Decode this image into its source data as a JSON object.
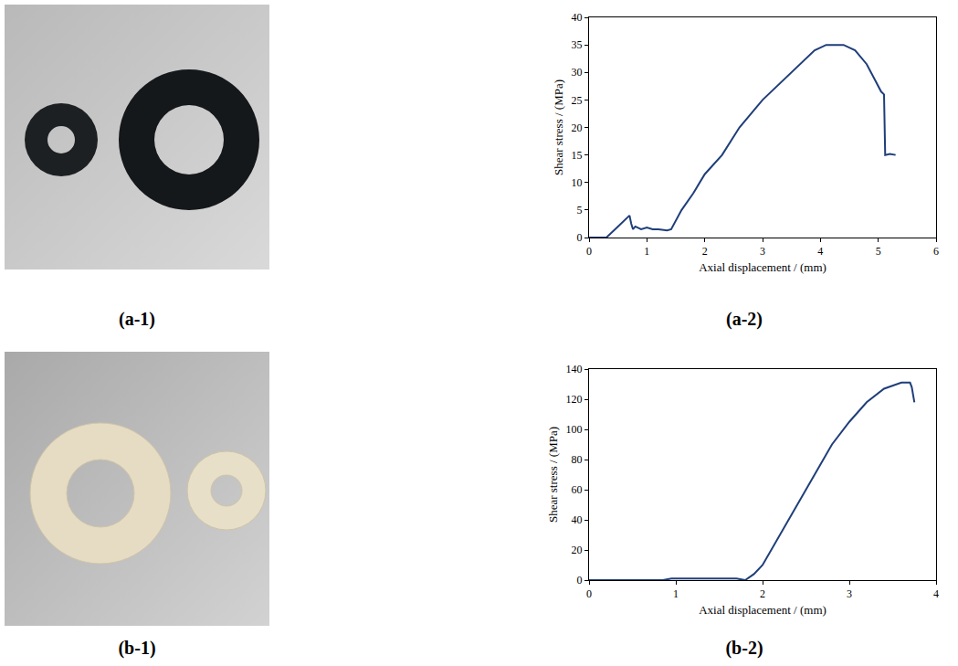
{
  "panels": [
    "(a-1)",
    "(a-2)",
    "(b-1)",
    "(b-2)"
  ],
  "chart_data": [
    {
      "type": "line",
      "color": "#1f3e7a",
      "grid": false,
      "x_label": "Axial displacement / (mm)",
      "y_label": "Shear stress / (MPa)",
      "x": [
        0,
        0.3,
        0.5,
        0.65,
        0.7,
        0.73,
        0.76,
        0.8,
        0.9,
        1.0,
        1.1,
        1.2,
        1.35,
        1.42,
        1.5,
        1.6,
        1.8,
        2.0,
        2.3,
        2.6,
        3.0,
        3.5,
        3.9,
        4.1,
        4.4,
        4.6,
        4.8,
        4.95,
        5.05,
        5.1,
        5.12,
        5.2,
        5.3
      ],
      "values": [
        0,
        0,
        2,
        3.5,
        4,
        2.5,
        1.5,
        2,
        1.5,
        1.8,
        1.5,
        1.5,
        1.3,
        1.5,
        3,
        5,
        8,
        11.5,
        15,
        20,
        25,
        30,
        34,
        35,
        35,
        34,
        31.5,
        28.5,
        26.5,
        26,
        15,
        15.2,
        15
      ],
      "xlim": [
        0,
        6
      ],
      "xticks": [
        0,
        1,
        2,
        3,
        4,
        5,
        6
      ],
      "ylim": [
        0,
        40
      ],
      "yticks": [
        0,
        5,
        10,
        15,
        20,
        25,
        30,
        35,
        40
      ]
    },
    {
      "type": "line",
      "color": "#1f3e7a",
      "grid": false,
      "x_label": "Axial displacement / (mm)",
      "y_label": "Shear stress / (MPa)",
      "x": [
        0,
        0.85,
        0.95,
        1.2,
        1.5,
        1.7,
        1.8,
        1.9,
        2.0,
        2.2,
        2.5,
        2.8,
        3.0,
        3.2,
        3.4,
        3.6,
        3.7,
        3.72,
        3.75
      ],
      "values": [
        0,
        0,
        1,
        1,
        1,
        1,
        0,
        4,
        10,
        30,
        60,
        90,
        105,
        118,
        127,
        131,
        131,
        128,
        118
      ],
      "xlim": [
        0,
        4
      ],
      "xticks": [
        0,
        1,
        2,
        3,
        4
      ],
      "ylim": [
        0,
        140
      ],
      "yticks": [
        0,
        20,
        40,
        60,
        80,
        100,
        120,
        140
      ]
    }
  ]
}
